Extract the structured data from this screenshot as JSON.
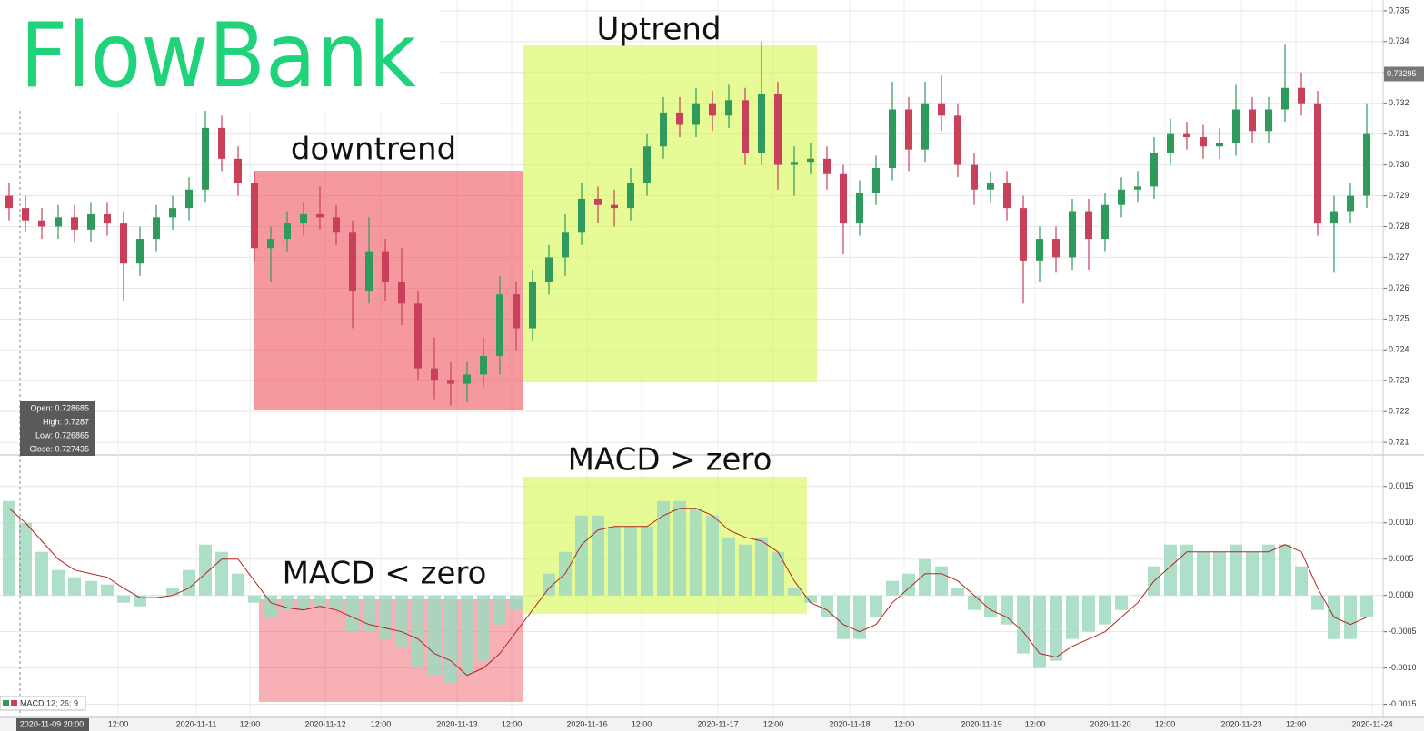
{
  "logo": "FlowBank",
  "chart_data": [
    {
      "type": "candlestick",
      "up_color": "#2e9a5c",
      "down_color": "#c8405a",
      "open": [
        0.729,
        0.7286,
        0.7282,
        0.728,
        0.7283,
        0.7279,
        0.7284,
        0.7281,
        0.7268,
        0.7276,
        0.7283,
        0.7286,
        0.7292,
        0.7312,
        0.7302,
        0.7294,
        0.7273,
        0.7276,
        0.7281,
        0.7284,
        0.7283,
        0.7278,
        0.7259,
        0.7272,
        0.7262,
        0.7255,
        0.7234,
        0.723,
        0.7229,
        0.7232,
        0.7238,
        0.7258,
        0.7247,
        0.7262,
        0.727,
        0.7278,
        0.7289,
        0.7287,
        0.7286,
        0.7294,
        0.7306,
        0.7317,
        0.7313,
        0.732,
        0.7316,
        0.7321,
        0.7304,
        0.7323,
        0.73,
        0.7301,
        0.7302,
        0.7297,
        0.7281,
        0.7291,
        0.7299,
        0.7318,
        0.7305,
        0.732,
        0.7316,
        0.73,
        0.7292,
        0.7294,
        0.7286,
        0.7269,
        0.7276,
        0.727,
        0.7285,
        0.7276,
        0.7287,
        0.7292,
        0.7293,
        0.7304,
        0.731,
        0.7309,
        0.7306,
        0.7307,
        0.7318,
        0.7311,
        0.7318,
        0.7325,
        0.732,
        0.7281,
        0.7285,
        0.729
      ],
      "high": [
        0.7294,
        0.729,
        0.7286,
        0.7287,
        0.7287,
        0.7288,
        0.7288,
        0.7285,
        0.728,
        0.7287,
        0.729,
        0.7296,
        0.7318,
        0.7316,
        0.7306,
        0.7298,
        0.728,
        0.7285,
        0.7288,
        0.7293,
        0.7287,
        0.7282,
        0.7283,
        0.7276,
        0.7273,
        0.7259,
        0.7244,
        0.7236,
        0.7236,
        0.7244,
        0.7264,
        0.7262,
        0.7266,
        0.7274,
        0.7284,
        0.7294,
        0.7293,
        0.7292,
        0.7299,
        0.731,
        0.7322,
        0.7322,
        0.7325,
        0.7324,
        0.7326,
        0.7325,
        0.734,
        0.7327,
        0.7306,
        0.7307,
        0.7306,
        0.73,
        0.7295,
        0.7303,
        0.7327,
        0.7322,
        0.7327,
        0.7329,
        0.732,
        0.7304,
        0.7298,
        0.7298,
        0.729,
        0.728,
        0.728,
        0.7289,
        0.7289,
        0.7291,
        0.7296,
        0.7298,
        0.7309,
        0.7315,
        0.7314,
        0.7313,
        0.7312,
        0.7326,
        0.7322,
        0.7322,
        0.7339,
        0.733,
        0.7324,
        0.729,
        0.7294,
        0.732
      ],
      "low": [
        0.7282,
        0.7278,
        0.7276,
        0.7276,
        0.7275,
        0.7275,
        0.7277,
        0.7256,
        0.7264,
        0.7272,
        0.7279,
        0.7282,
        0.7288,
        0.7298,
        0.729,
        0.7269,
        0.7262,
        0.7272,
        0.7277,
        0.7279,
        0.7274,
        0.7247,
        0.7255,
        0.7256,
        0.7248,
        0.723,
        0.7224,
        0.7222,
        0.7223,
        0.7228,
        0.7232,
        0.724,
        0.7243,
        0.7258,
        0.7264,
        0.7274,
        0.7281,
        0.728,
        0.7282,
        0.729,
        0.7302,
        0.7309,
        0.7309,
        0.7311,
        0.7312,
        0.73,
        0.73,
        0.7292,
        0.729,
        0.7297,
        0.7292,
        0.7271,
        0.7277,
        0.7287,
        0.7295,
        0.7298,
        0.7301,
        0.7311,
        0.7296,
        0.7287,
        0.7288,
        0.7282,
        0.7255,
        0.7262,
        0.7265,
        0.7266,
        0.7266,
        0.7272,
        0.7283,
        0.7288,
        0.7289,
        0.73,
        0.7305,
        0.7302,
        0.7302,
        0.7303,
        0.7307,
        0.7307,
        0.7314,
        0.7316,
        0.7277,
        0.7265,
        0.7281,
        0.7286
      ],
      "close": [
        0.7286,
        0.7282,
        0.728,
        0.7283,
        0.7279,
        0.7284,
        0.7281,
        0.7268,
        0.7276,
        0.7283,
        0.7286,
        0.7292,
        0.7312,
        0.7302,
        0.7294,
        0.7273,
        0.7276,
        0.7281,
        0.7284,
        0.7283,
        0.7278,
        0.7259,
        0.7272,
        0.7262,
        0.7255,
        0.7234,
        0.723,
        0.7229,
        0.7232,
        0.7238,
        0.7258,
        0.7247,
        0.7262,
        0.727,
        0.7278,
        0.7289,
        0.7287,
        0.7286,
        0.7294,
        0.7306,
        0.7317,
        0.7313,
        0.732,
        0.7316,
        0.7321,
        0.7304,
        0.7323,
        0.73,
        0.7301,
        0.7302,
        0.7297,
        0.7281,
        0.7291,
        0.7299,
        0.7318,
        0.7305,
        0.732,
        0.7316,
        0.73,
        0.7292,
        0.7294,
        0.7286,
        0.7269,
        0.7276,
        0.727,
        0.7285,
        0.7276,
        0.7287,
        0.7292,
        0.7293,
        0.7304,
        0.731,
        0.7309,
        0.7306,
        0.7307,
        0.7318,
        0.7311,
        0.7318,
        0.7325,
        0.732,
        0.7281,
        0.7285,
        0.729,
        0.731
      ],
      "ylim": [
        0.72062,
        0.73535
      ],
      "yticks": [
        0.735,
        0.734,
        0.733,
        0.732,
        0.731,
        {
          "value": 0.73,
          "label": "0.730"
        },
        0.729,
        0.728,
        0.727,
        0.726,
        0.725,
        0.724,
        0.723,
        0.722,
        0.721
      ],
      "grid": true,
      "price_marker": 0.73295,
      "tooltip": [
        "Open: 0.728685",
        "High: 0.7287",
        "Low: 0.726865",
        "Close: 0.727435"
      ],
      "annotations": [
        "downtrend",
        "Uptrend"
      ]
    },
    {
      "type": "macd",
      "legend": "MACD 12; 26; 9",
      "color": "#9fd9c0",
      "line_color": "#b3261e",
      "values": [
        0.0013,
        0.001,
        0.0006,
        0.00035,
        0.00025,
        0.0002,
        0.00015,
        -0.0001,
        -0.00015,
        0.0,
        0.0001,
        0.00035,
        0.0007,
        0.0006,
        0.0003,
        -0.0001,
        -0.0003,
        -0.0002,
        -0.0002,
        -0.00015,
        -0.0002,
        -0.0005,
        -0.0005,
        -0.0006,
        -0.0007,
        -0.001,
        -0.0011,
        -0.0012,
        -0.0011,
        -0.0009,
        -0.0004,
        -0.0002,
        0.0,
        0.0003,
        0.0006,
        0.0011,
        0.0011,
        0.00095,
        0.00095,
        0.00095,
        0.0013,
        0.0013,
        0.0012,
        0.0011,
        0.0008,
        0.0007,
        0.0008,
        0.0006,
        0.0001,
        -0.0001,
        -0.0003,
        -0.0006,
        -0.0006,
        -0.0003,
        0.0002,
        0.0003,
        0.0005,
        0.0004,
        0.0001,
        -0.0002,
        -0.0003,
        -0.0004,
        -0.0008,
        -0.001,
        -0.0009,
        -0.0006,
        -0.0005,
        -0.0004,
        -0.0002,
        0.0,
        0.0004,
        0.0007,
        0.0007,
        0.0006,
        0.0006,
        0.0007,
        0.0006,
        0.0007,
        0.0007,
        0.0004,
        -0.0002,
        -0.0006,
        -0.0006,
        -0.0003
      ],
      "line_values": [
        0.0012,
        0.001,
        0.00075,
        0.0005,
        0.00035,
        0.0003,
        0.00025,
        0.0001,
        -3e-05,
        -3e-05,
        0.0,
        0.0001,
        0.0003,
        0.0005,
        0.0005,
        0.0002,
        -0.0001,
        -0.00017,
        -0.0002,
        -0.00015,
        -0.0002,
        -0.0003,
        -0.0004,
        -0.00045,
        -0.0005,
        -0.0006,
        -0.0008,
        -0.0009,
        -0.0011,
        -0.001,
        -0.0008,
        -0.0005,
        -0.0002,
        0.0001,
        0.0003,
        0.0007,
        0.0009,
        0.00095,
        0.00095,
        0.00095,
        0.0011,
        0.0012,
        0.0012,
        0.0011,
        0.0009,
        0.0008,
        0.00075,
        0.0006,
        0.0002,
        -0.0001,
        -0.0002,
        -0.0004,
        -0.0005,
        -0.0004,
        -0.0001,
        0.0001,
        0.0003,
        0.0003,
        0.0002,
        0.0,
        -0.0002,
        -0.0003,
        -0.0005,
        -0.0008,
        -0.00085,
        -0.0007,
        -0.0006,
        -0.0005,
        -0.0003,
        -0.0001,
        0.0002,
        0.0004,
        0.0006,
        0.0006,
        0.0006,
        0.0006,
        0.0006,
        0.0006,
        0.0007,
        0.0006,
        0.0001,
        -0.0003,
        -0.0004,
        -0.0003
      ],
      "ylim": [
        -0.00168,
        0.00191
      ],
      "yticks": [
        0.0015,
        {
          "value": 0.001,
          "label": "0.0010"
        },
        0.0005,
        {
          "value": 0,
          "label": "0.0000"
        },
        -0.0005,
        {
          "value": -0.001,
          "label": "-0.0010"
        },
        -0.0015
      ],
      "grid": true,
      "annotations": [
        "MACD > zero",
        "MACD < zero"
      ],
      "xtick_labels": [
        "2020-11-09 20:00",
        "12:00",
        "2020-11-11",
        "12:00",
        "2020-11-12",
        "12:00",
        "2020-11-13",
        "12:00",
        "2020-11-16",
        "12:00",
        "2020-11-17",
        "12:00",
        "2020-11-18",
        "12:00",
        "2020-11-19",
        "12:00",
        "2020-11-20",
        "12:00",
        "2020-11-23",
        "12:00",
        "2020-11-24"
      ]
    }
  ]
}
